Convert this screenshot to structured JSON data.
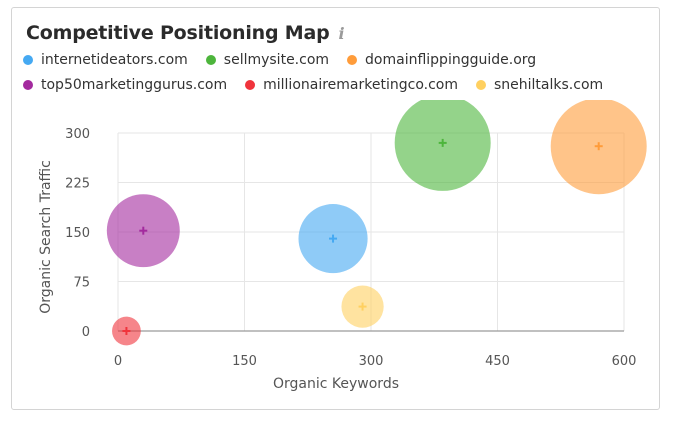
{
  "chart_data": {
    "type": "bubble",
    "title": "Competitive Positioning Map",
    "xlabel": "Organic Keywords",
    "ylabel": "Organic Search Traffic",
    "xlim": [
      0,
      600
    ],
    "ylim": [
      0,
      300
    ],
    "xticks": [
      0,
      150,
      300,
      450,
      600
    ],
    "yticks": [
      0,
      75,
      150,
      225,
      300
    ],
    "grid": true,
    "legend_position": "top-left",
    "series": [
      {
        "name": "internetideators.com",
        "color": "#45a9f2",
        "x": 255,
        "y": 140,
        "size": 0.72
      },
      {
        "name": "sellmysite.com",
        "color": "#4db53c",
        "x": 385,
        "y": 285,
        "size": 1.0
      },
      {
        "name": "domainflippingguide.org",
        "color": "#ff9c3a",
        "x": 570,
        "y": 280,
        "size": 1.0
      },
      {
        "name": "top50marketinggurus.com",
        "color": "#a32a9e",
        "x": 30,
        "y": 152,
        "size": 0.76
      },
      {
        "name": "millionairemarketingco.com",
        "color": "#f0343c",
        "x": 10,
        "y": 0,
        "size": 0.3
      },
      {
        "name": "snehiltalks.com",
        "color": "#ffd060",
        "x": 290,
        "y": 37,
        "size": 0.44
      }
    ]
  }
}
